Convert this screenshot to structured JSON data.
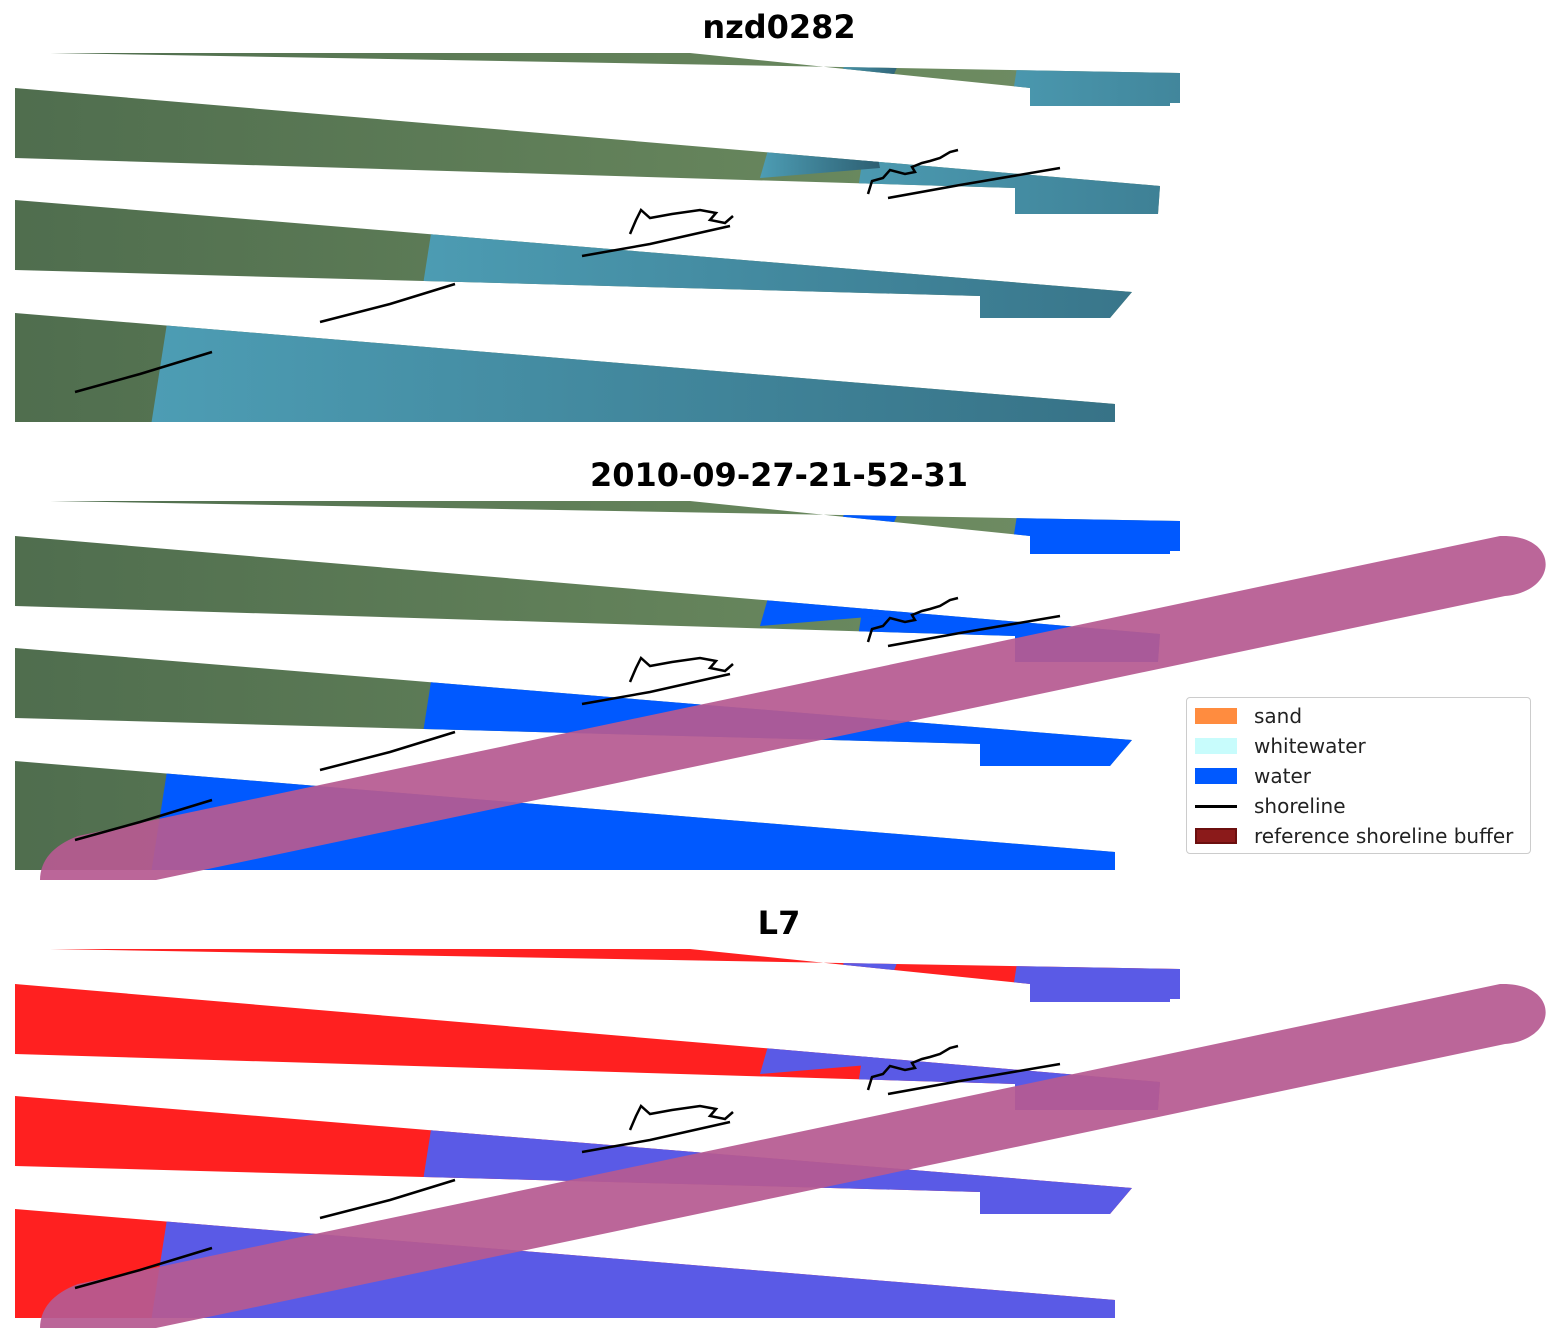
{
  "panels": [
    {
      "title": "nzd0282",
      "style": "rgb"
    },
    {
      "title": "2010-09-27-21-52-31",
      "style": "classified"
    },
    {
      "title": "L7",
      "style": "index"
    }
  ],
  "legend": {
    "items": [
      {
        "label": "sand",
        "color": "#ff8c3f",
        "kind": "patch"
      },
      {
        "label": "whitewater",
        "color": "#c8fcfc",
        "kind": "patch"
      },
      {
        "label": "water",
        "color": "#0059ff",
        "kind": "patch"
      },
      {
        "label": "shoreline",
        "color": "#000000",
        "kind": "line"
      },
      {
        "label": "reference shoreline buffer",
        "color": "#8b1a1a",
        "kind": "patch"
      }
    ]
  },
  "colors": {
    "land_green": "#5d7a55",
    "water_teal": "#3f7f95",
    "water_class_blue": "#0059ff",
    "index_red": "#ff2020",
    "index_blue": "#5a5ae6",
    "buffer_pink": "#b65a91",
    "shoreline": "#000000"
  }
}
